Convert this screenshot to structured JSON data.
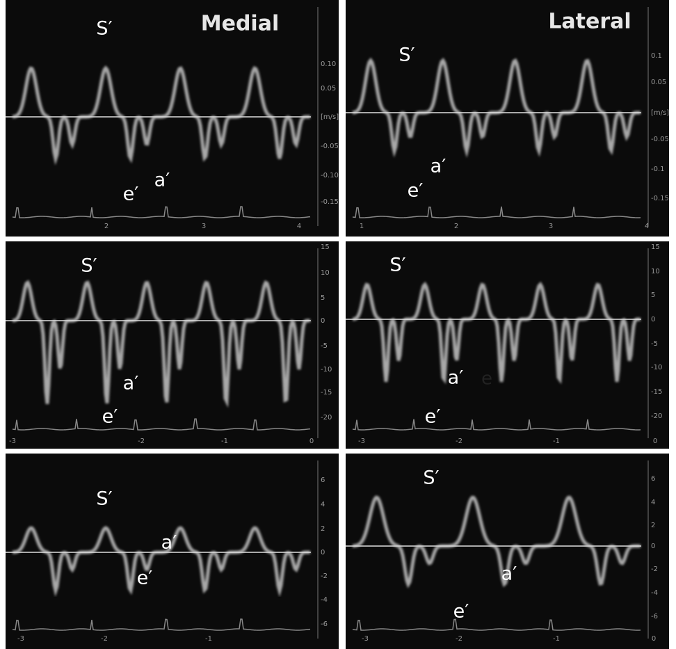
{
  "panels": [
    {
      "title": "Medial",
      "s": "S′",
      "e": "e′",
      "a": "a′",
      "ticks": [
        "0.10",
        "0.05",
        "[m/s]",
        "-0.05",
        "-0.10",
        "-0.15"
      ],
      "x_ticks": [
        "2",
        "3",
        "4"
      ]
    },
    {
      "title": "Lateral",
      "s": "S′",
      "e": "e′",
      "a": "a′",
      "ticks": [
        "0.1",
        "0.05",
        "[m/s]",
        "-0.05",
        "-0.1",
        "-0.15"
      ],
      "x_ticks": [
        "1",
        "2",
        "3",
        "4"
      ]
    },
    {
      "s": "S′",
      "e": "e′",
      "a": "a′",
      "ticks": [
        "15",
        "10",
        "5",
        "0",
        "-5",
        "-10",
        "-15",
        "-20"
      ],
      "x_ticks": [
        "-3",
        "-2",
        "-1",
        "0"
      ]
    },
    {
      "s": "S′",
      "e": "e′",
      "a": "a′",
      "extra": "e",
      "ticks": [
        "15",
        "10",
        "5",
        "0",
        "-5",
        "-10",
        "-15",
        "-20"
      ],
      "x_ticks": [
        "-3",
        "-2",
        "-1",
        "0"
      ]
    },
    {
      "s": "S′",
      "e": "e′",
      "a": "a′",
      "ticks": [
        "6",
        "4",
        "2",
        "0",
        "-2",
        "-4",
        "-6"
      ],
      "x_ticks": [
        "-3",
        "-2",
        "-1"
      ]
    },
    {
      "s": "S′",
      "e": "e′",
      "a": "a′",
      "ticks": [
        "6",
        "4",
        "2",
        "0",
        "-2",
        "-4",
        "-6"
      ],
      "x_ticks": [
        "-3",
        "-2",
        "-1",
        "0"
      ]
    }
  ]
}
